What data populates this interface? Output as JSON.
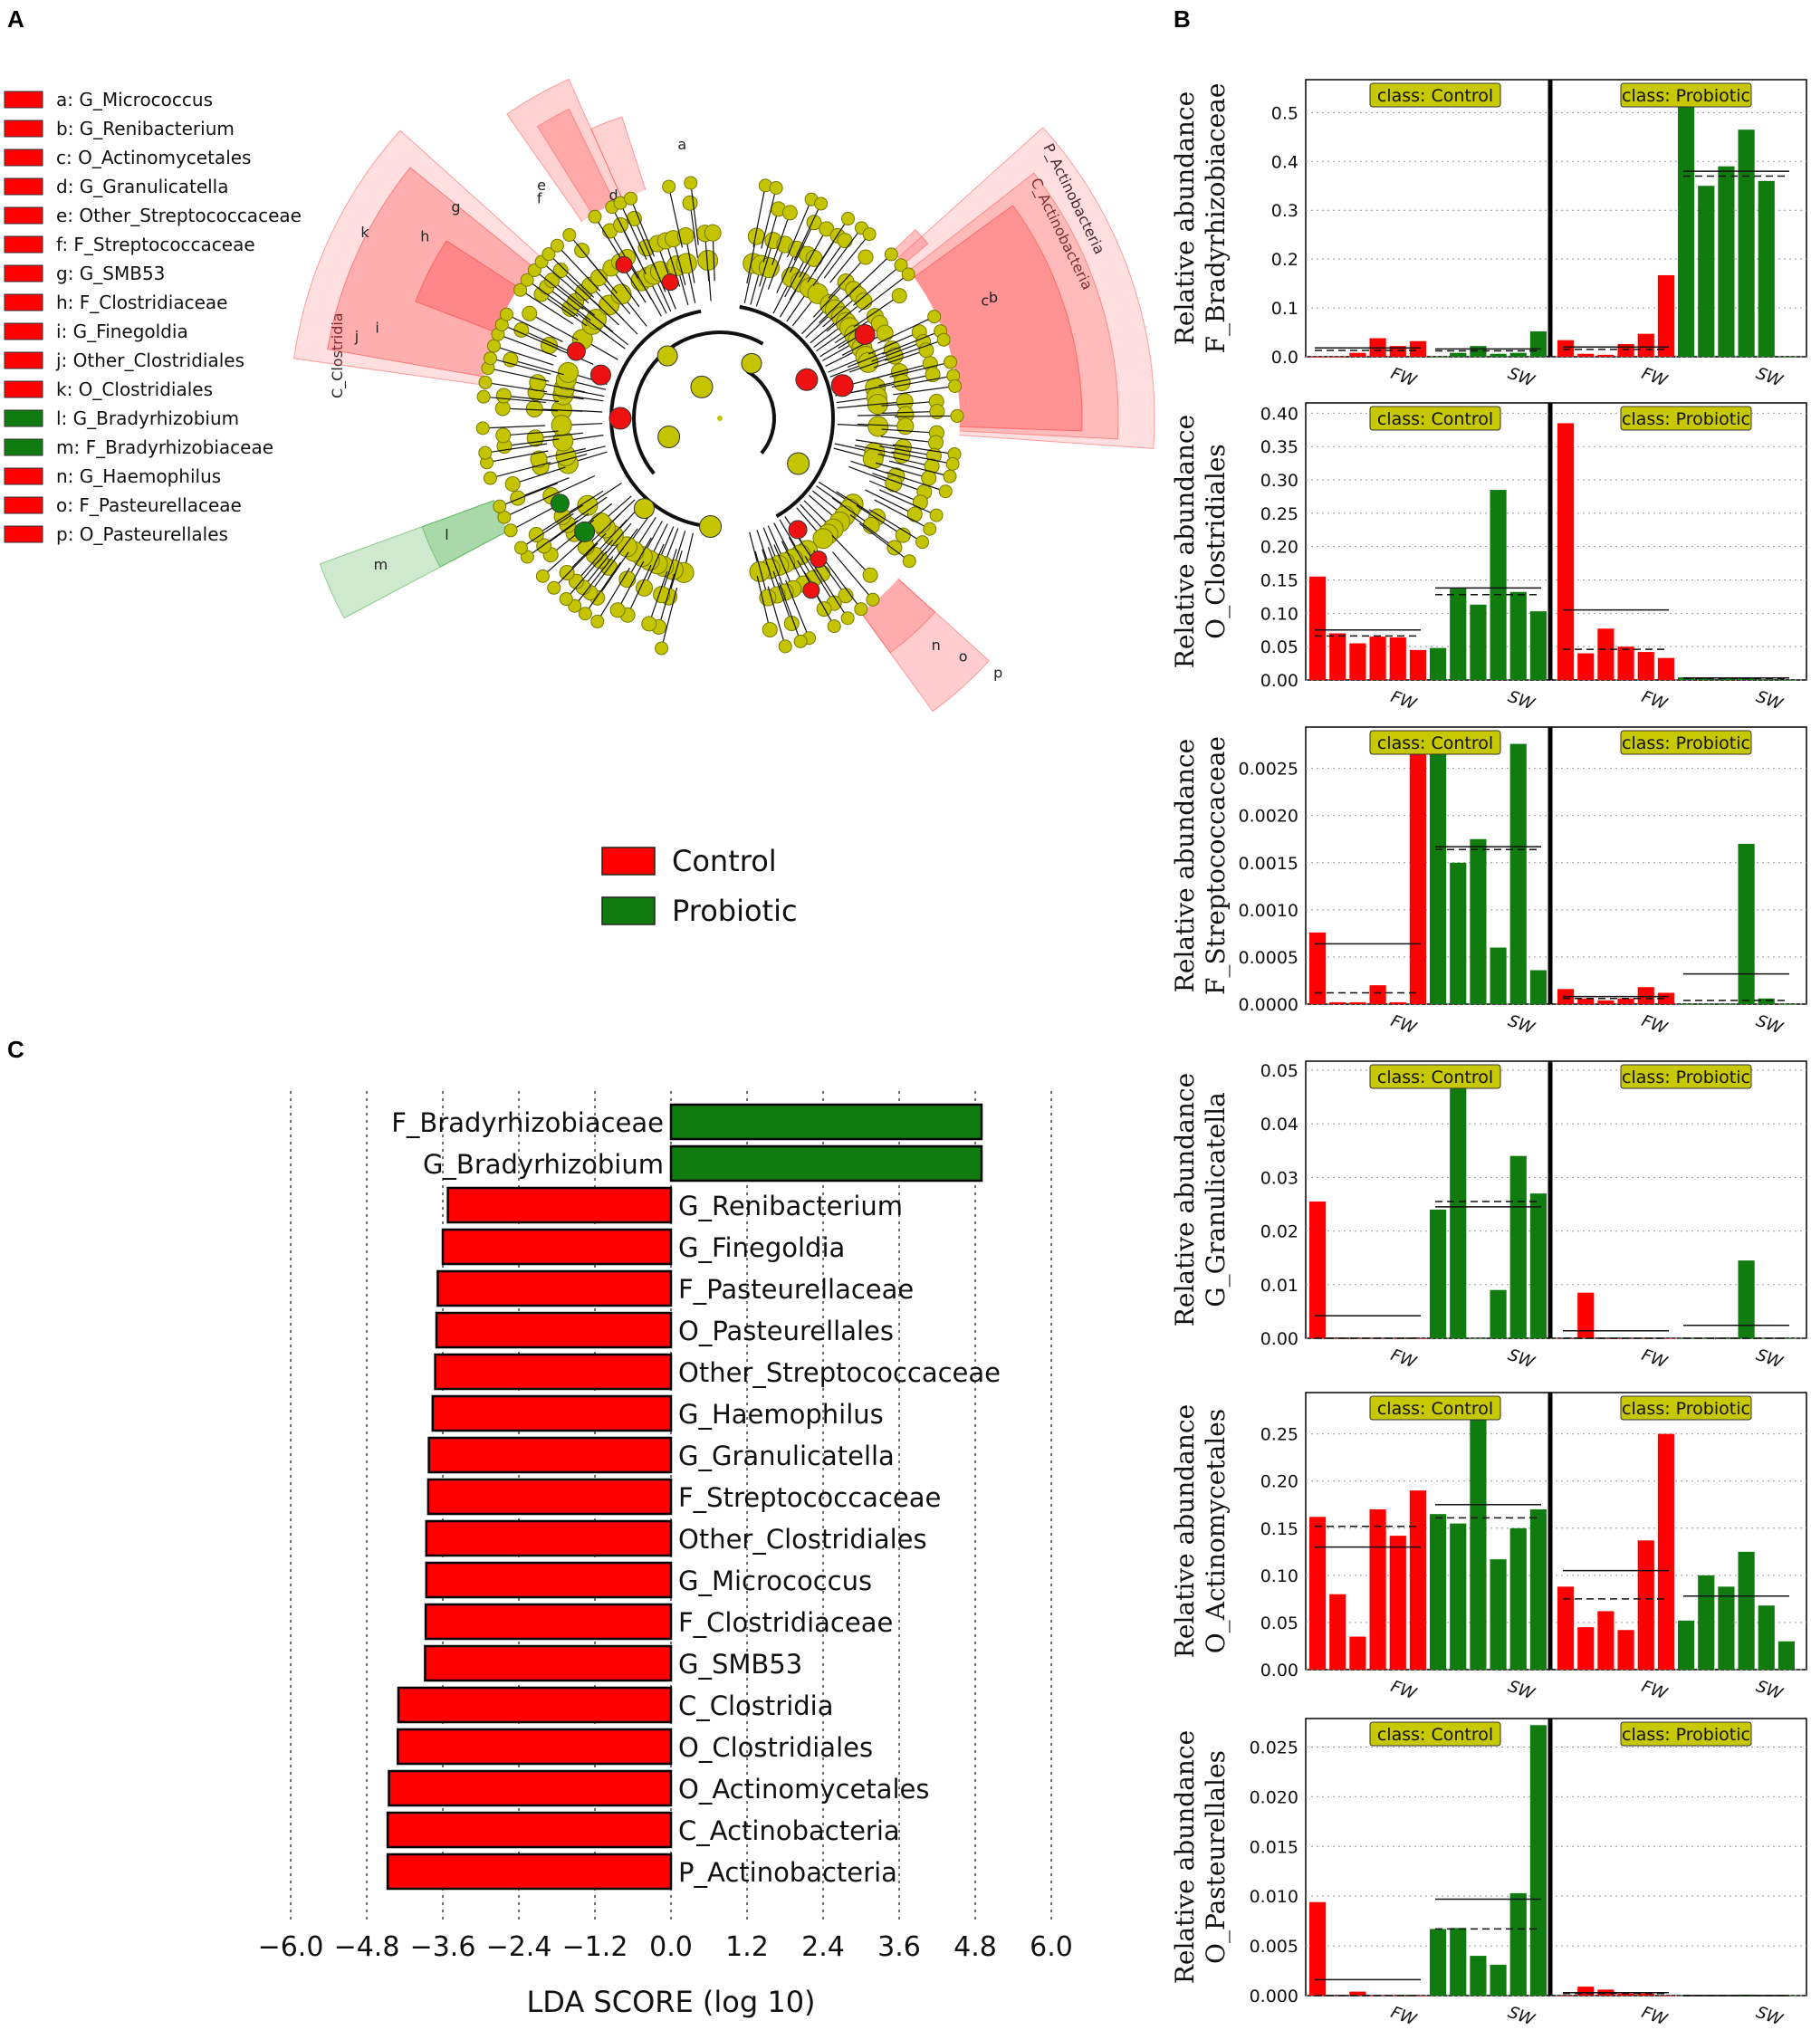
{
  "panels": {
    "a": "A",
    "b": "B",
    "c": "C"
  },
  "colors": {
    "control": "#ff0000",
    "probiotic": "#107c10",
    "node": "#c4c400",
    "nodeEdge": "#7a7a00",
    "classBox": "#c8c800"
  },
  "group_legend": [
    {
      "label": "Control",
      "color": "#ff0000"
    },
    {
      "label": "Probiotic",
      "color": "#107c10"
    }
  ],
  "cladogram_legend": [
    {
      "key": "a",
      "label": "a: G_Micrococcus",
      "color": "#ff0000"
    },
    {
      "key": "b",
      "label": "b: G_Renibacterium",
      "color": "#ff0000"
    },
    {
      "key": "c",
      "label": "c: O_Actinomycetales",
      "color": "#ff0000"
    },
    {
      "key": "d",
      "label": "d: G_Granulicatella",
      "color": "#ff0000"
    },
    {
      "key": "e",
      "label": "e: Other_Streptococcaceae",
      "color": "#ff0000"
    },
    {
      "key": "f",
      "label": "f: F_Streptococcaceae",
      "color": "#ff0000"
    },
    {
      "key": "g",
      "label": "g: G_SMB53",
      "color": "#ff0000"
    },
    {
      "key": "h",
      "label": "h: F_Clostridiaceae",
      "color": "#ff0000"
    },
    {
      "key": "i",
      "label": "i: G_Finegoldia",
      "color": "#ff0000"
    },
    {
      "key": "j",
      "label": "j: Other_Clostridiales",
      "color": "#ff0000"
    },
    {
      "key": "k",
      "label": "k: O_Clostridiales",
      "color": "#ff0000"
    },
    {
      "key": "l",
      "label": "l: G_Bradyrhizobium",
      "color": "#107c10"
    },
    {
      "key": "m",
      "label": "m: F_Bradyrhizobiaceae",
      "color": "#107c10"
    },
    {
      "key": "n",
      "label": "n: G_Haemophilus",
      "color": "#ff0000"
    },
    {
      "key": "o",
      "label": "o: F_Pasteurellaceae",
      "color": "#ff0000"
    },
    {
      "key": "p",
      "label": "p: O_Pasteurellales",
      "color": "#ff0000"
    }
  ],
  "cladogram_sector_labels": {
    "p_actinobacteria": "P_Actinobacteria",
    "c_actinobacteria": "C_Actinobacteria",
    "c_clostridia": "C_Clostridia"
  },
  "abundance_common": {
    "class_labels": [
      "class: Control",
      "class: Probiotic"
    ],
    "group_labels": [
      "FW",
      "SW"
    ]
  },
  "chart_data": [
    {
      "type": "bar",
      "title": "LDA SCORE",
      "xlabel": "LDA SCORE (log 10)",
      "xlim": [
        -6.0,
        6.0
      ],
      "xticks": [
        "−6.0",
        "−4.8",
        "−3.6",
        "−2.4",
        "−1.2",
        "0.0",
        "1.2",
        "2.4",
        "3.6",
        "4.8",
        "6.0"
      ],
      "categories": [
        "F_Bradyrhizobiaceae",
        "G_Bradyrhizobium",
        "G_Renibacterium",
        "G_Finegoldia",
        "F_Pasteurellaceae",
        "O_Pasteurellales",
        "Other_Streptococcaceae",
        "G_Haemophilus",
        "G_Granulicatella",
        "F_Streptococcaceae",
        "Other_Clostridiales",
        "G_Micrococcus",
        "F_Clostridiaceae",
        "G_SMB53",
        "C_Clostridia",
        "O_Clostridiales",
        "O_Actinomycetales",
        "C_Actinobacteria",
        "P_Actinobacteria"
      ],
      "values": [
        4.9,
        4.9,
        -3.52,
        -3.6,
        -3.68,
        -3.7,
        -3.72,
        -3.76,
        -3.82,
        -3.83,
        -3.86,
        -3.86,
        -3.87,
        -3.88,
        -4.3,
        -4.31,
        -4.45,
        -4.47,
        -4.47
      ],
      "groups": [
        "Probiotic",
        "Probiotic",
        "Control",
        "Control",
        "Control",
        "Control",
        "Control",
        "Control",
        "Control",
        "Control",
        "Control",
        "Control",
        "Control",
        "Control",
        "Control",
        "Control",
        "Control",
        "Control",
        "Control"
      ]
    },
    {
      "type": "bar",
      "ylabel": [
        "Relative abundance",
        "F_Bradyrhizobiaceae"
      ],
      "ylim": [
        0,
        0.56
      ],
      "yticks": [
        "0.0",
        "0.1",
        "0.2",
        "0.3",
        "0.4",
        "0.5"
      ],
      "ytick_values": [
        0,
        0.1,
        0.2,
        0.3,
        0.4,
        0.5
      ],
      "series": [
        {
          "name": "Control",
          "values": [
            0.0,
            0.0,
            0.008,
            0.038,
            0.022,
            0.032,
            0.0,
            0.008,
            0.022,
            0.006,
            0.008,
            0.052
          ]
        },
        {
          "name": "Probiotic",
          "values": [
            0.034,
            0.006,
            0.004,
            0.026,
            0.047,
            0.167,
            0.56,
            0.35,
            0.39,
            0.465,
            0.36,
            0.0
          ]
        }
      ],
      "means": [
        [
          0.018,
          0.016
        ],
        [
          0.02,
          0.38
        ]
      ],
      "medians": [
        [
          0.013,
          0.012
        ],
        [
          0.015,
          0.37
        ]
      ]
    },
    {
      "type": "bar",
      "ylabel": [
        "Relative abundance",
        "O_Clostridiales"
      ],
      "ylim": [
        0,
        0.41
      ],
      "yticks": [
        "0.00",
        "0.05",
        "0.10",
        "0.15",
        "0.20",
        "0.25",
        "0.30",
        "0.35",
        "0.40"
      ],
      "ytick_values": [
        0,
        0.05,
        0.1,
        0.15,
        0.2,
        0.25,
        0.3,
        0.35,
        0.4
      ],
      "series": [
        {
          "name": "Control",
          "values": [
            0.155,
            0.07,
            0.055,
            0.065,
            0.064,
            0.045,
            0.048,
            0.137,
            0.113,
            0.285,
            0.132,
            0.103
          ]
        },
        {
          "name": "Probiotic",
          "values": [
            0.385,
            0.04,
            0.077,
            0.05,
            0.042,
            0.033,
            0.004,
            0.003,
            0.002,
            0.002,
            0.001,
            0.0
          ]
        }
      ],
      "means": [
        [
          0.075,
          0.138
        ],
        [
          0.105,
          0.003
        ]
      ],
      "medians": [
        [
          0.066,
          0.128
        ],
        [
          0.046,
          0.002
        ]
      ]
    },
    {
      "type": "bar",
      "ylabel": [
        "Relative abundance",
        "F_Streptococcaceae"
      ],
      "ylim": [
        0,
        0.0029
      ],
      "yticks": [
        "0.0000",
        "0.0005",
        "0.0010",
        "0.0015",
        "0.0020",
        "0.0025"
      ],
      "ytick_values": [
        0,
        0.0005,
        0.001,
        0.0015,
        0.002,
        0.0025
      ],
      "series": [
        {
          "name": "Control",
          "values": [
            0.00076,
            2e-05,
            2e-05,
            0.0002,
            2e-05,
            0.0029,
            0.0029,
            0.0015,
            0.00175,
            0.0006,
            0.00276,
            0.00036
          ]
        },
        {
          "name": "Probiotic",
          "values": [
            0.00016,
            6e-05,
            4e-05,
            6e-05,
            0.00018,
            0.00012,
            0.0,
            0.0,
            0.0,
            0.0017,
            6e-05,
            0.0
          ]
        }
      ],
      "means": [
        [
          0.00064,
          0.00167
        ],
        [
          8e-05,
          0.00032
        ]
      ],
      "medians": [
        [
          0.00012,
          0.00164
        ],
        [
          6e-05,
          4e-05
        ]
      ]
    },
    {
      "type": "bar",
      "ylabel": [
        "Relative abundance",
        "G_Granulicatella"
      ],
      "ylim": [
        0,
        0.051
      ],
      "yticks": [
        "0.00",
        "0.01",
        "0.02",
        "0.03",
        "0.04",
        "0.05"
      ],
      "ytick_values": [
        0,
        0.01,
        0.02,
        0.03,
        0.04,
        0.05
      ],
      "series": [
        {
          "name": "Control",
          "values": [
            0.0255,
            0.0,
            0.0,
            0.0,
            0.0,
            0.0,
            0.024,
            0.051,
            0.0,
            0.009,
            0.034,
            0.027
          ]
        },
        {
          "name": "Probiotic",
          "values": [
            0.0,
            0.0085,
            0.0,
            0.0,
            0.0,
            0.0,
            0.0,
            0.0,
            0.0,
            0.0145,
            0.0,
            0.0
          ]
        }
      ],
      "means": [
        [
          0.0042,
          0.0245
        ],
        [
          0.0014,
          0.0024
        ]
      ],
      "medians": [
        [
          0.0,
          0.0255
        ],
        [
          0.0,
          0.0
        ]
      ]
    },
    {
      "type": "bar",
      "ylabel": [
        "Relative abundance",
        "O_Actinomycetales"
      ],
      "ylim": [
        0,
        0.29
      ],
      "yticks": [
        "0.00",
        "0.05",
        "0.10",
        "0.15",
        "0.20",
        "0.25"
      ],
      "ytick_values": [
        0,
        0.05,
        0.1,
        0.15,
        0.2,
        0.25
      ],
      "series": [
        {
          "name": "Control",
          "values": [
            0.162,
            0.08,
            0.035,
            0.17,
            0.142,
            0.19,
            0.165,
            0.155,
            0.29,
            0.117,
            0.15,
            0.17
          ]
        },
        {
          "name": "Probiotic",
          "values": [
            0.088,
            0.045,
            0.062,
            0.042,
            0.137,
            0.25,
            0.052,
            0.1,
            0.088,
            0.125,
            0.068,
            0.03
          ]
        }
      ],
      "means": [
        [
          0.13,
          0.175
        ],
        [
          0.105,
          0.078
        ]
      ],
      "medians": [
        [
          0.152,
          0.161
        ],
        [
          0.075,
          0.078
        ]
      ]
    },
    {
      "type": "bar",
      "ylabel": [
        "Relative abundance",
        "O_Pasteurellales"
      ],
      "ylim": [
        0,
        0.0275
      ],
      "yticks": [
        "0.000",
        "0.005",
        "0.010",
        "0.015",
        "0.020",
        "0.025"
      ],
      "ytick_values": [
        0,
        0.005,
        0.01,
        0.015,
        0.02,
        0.025
      ],
      "series": [
        {
          "name": "Control",
          "values": [
            0.0094,
            0.0,
            0.0004,
            0.0,
            0.0,
            0.0,
            0.0067,
            0.0068,
            0.004,
            0.0031,
            0.0103,
            0.0272
          ]
        },
        {
          "name": "Probiotic",
          "values": [
            0.0,
            0.0009,
            0.0006,
            0.0002,
            0.0002,
            0.0,
            0.0,
            0.0,
            0.0,
            0.0001,
            0.0,
            0.0
          ]
        }
      ],
      "means": [
        [
          0.0016,
          0.0097
        ],
        [
          0.0003,
          0.0
        ]
      ],
      "medians": [
        [
          0.0,
          0.0067
        ],
        [
          0.0002,
          0.0
        ]
      ]
    }
  ]
}
